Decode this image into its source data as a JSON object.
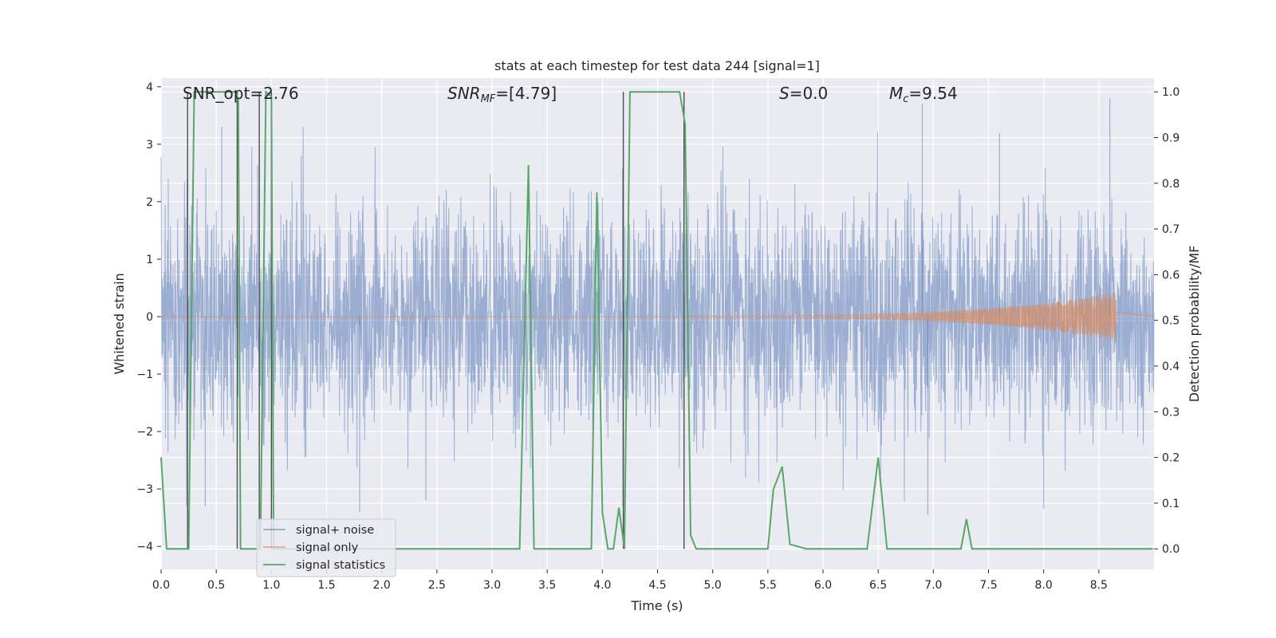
{
  "chart_data": {
    "type": "line",
    "title": "stats at each timestep for test data 244 [signal=1]",
    "xlabel": "Time (s)",
    "ylabel": "Whitened strain",
    "ylabel_right": "Detection probability/MF",
    "xlim": [
      0.0,
      9.0
    ],
    "ylim": [
      -4.4,
      4.15
    ],
    "ylim_right": [
      -0.045,
      1.03
    ],
    "xticks": [
      "0.0",
      "0.5",
      "1.0",
      "1.5",
      "2.0",
      "2.5",
      "3.0",
      "3.5",
      "4.0",
      "4.5",
      "5.0",
      "5.5",
      "6.0",
      "6.5",
      "7.0",
      "7.5",
      "8.0",
      "8.5"
    ],
    "yticks": [
      "4",
      "3",
      "2",
      "1",
      "0",
      "−1",
      "−2",
      "−3",
      "−4"
    ],
    "yticks_right": [
      "1.0",
      "0.9",
      "0.8",
      "0.7",
      "0.6",
      "0.5",
      "0.4",
      "0.3",
      "0.2",
      "0.1",
      "0.0"
    ],
    "grid": true,
    "legend_position": "lower-left",
    "annotations": [
      {
        "text": "SNR_opt=2.76",
        "x": 0.2,
        "y": 3.75
      },
      {
        "text": "SNR_MF=[4.79]",
        "x": 2.6,
        "y": 3.75
      },
      {
        "text": "S=0.0",
        "x": 5.6,
        "y": 3.75
      },
      {
        "text": "M_c=9.54",
        "x": 6.6,
        "y": 3.75
      }
    ],
    "series": [
      {
        "name": "signal+ noise",
        "color": "#4c72b0",
        "description": "whitened strain noise, amplitude mostly within ±2.5, peaks up to ~3.8",
        "amplitude_envelope": 2.2,
        "extreme_peaks": [
          [
            8.6,
            3.8
          ],
          [
            6.9,
            3.7
          ],
          [
            0.55,
            3.3
          ],
          [
            7.6,
            3.2
          ],
          [
            2.4,
            -3.2
          ],
          [
            8.0,
            -3.35
          ],
          [
            0.4,
            -3.3
          ],
          [
            6.95,
            -3.45
          ],
          [
            1.8,
            -3.4
          ]
        ]
      },
      {
        "name": "signal only",
        "color": "#dd8452",
        "description": "chirp signal, near zero until ~5 s, growing to ±0.4 at 8.65 s",
        "chirp_start": 4.8,
        "chirp_end": 8.66,
        "chirp_peak_amplitude": 0.4
      },
      {
        "name": "signal statistics",
        "color": "#55a868",
        "axis": "right",
        "x": [
          0.0,
          0.05,
          0.1,
          0.25,
          0.3,
          0.5,
          0.6,
          0.68,
          0.7,
          0.72,
          0.75,
          0.8,
          0.88,
          0.9,
          0.95,
          1.0,
          1.02,
          1.05,
          1.1,
          3.2,
          3.25,
          3.33,
          3.38,
          3.45,
          3.9,
          3.95,
          4.0,
          4.05,
          4.1,
          4.15,
          4.2,
          4.25,
          4.3,
          4.45,
          4.6,
          4.7,
          4.75,
          4.8,
          4.85,
          4.9,
          5.5,
          5.55,
          5.63,
          5.7,
          5.85,
          6.0,
          6.4,
          6.5,
          6.58,
          6.65,
          7.25,
          7.3,
          7.35,
          8.99
        ],
        "values": [
          0.2,
          0.0,
          0.0,
          0.0,
          1.0,
          1.0,
          1.0,
          1.0,
          0.98,
          0.0,
          0.0,
          0.0,
          0.0,
          0.0,
          1.0,
          0.99,
          0.0,
          0.0,
          0.0,
          0.0,
          0.0,
          0.84,
          0.0,
          0.0,
          0.0,
          0.78,
          0.08,
          0.0,
          0.0,
          0.09,
          0.0,
          1.0,
          1.0,
          1.0,
          1.0,
          1.0,
          0.93,
          0.03,
          0.0,
          0.0,
          0.0,
          0.13,
          0.18,
          0.01,
          0.0,
          0.0,
          0.0,
          0.2,
          0.0,
          0.0,
          0.0,
          0.065,
          0.0,
          0.0
        ]
      }
    ],
    "vertical_lines": [
      0.24,
      0.69,
      0.89,
      1.0,
      4.19,
      4.74
    ],
    "vertical_line_color": "#4d4d4d"
  }
}
